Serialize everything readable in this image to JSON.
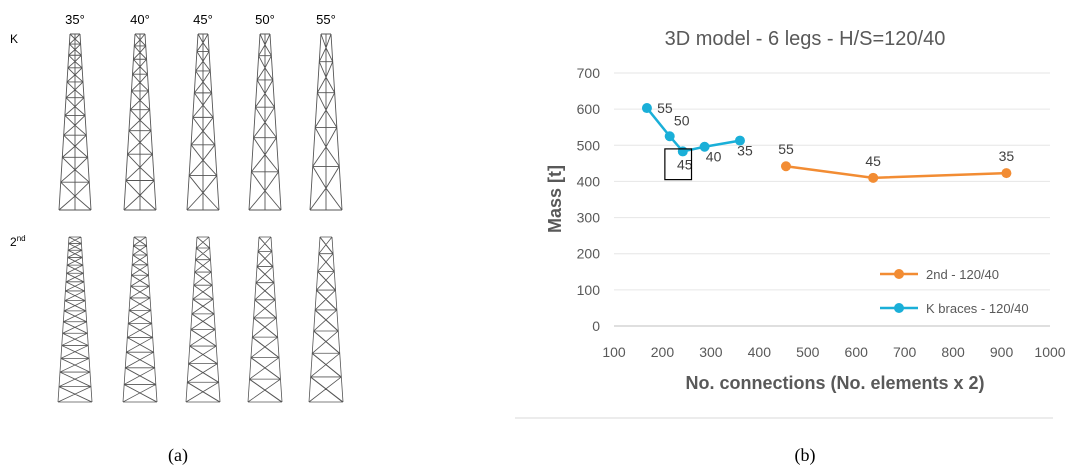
{
  "panel_a": {
    "angle_labels": [
      "35°",
      "40°",
      "45°",
      "50°",
      "55°"
    ],
    "row_k_label": "K",
    "row_2nd_label": "2",
    "row_2nd_superscript": "nd",
    "caption": "(a)",
    "tower_color": "#555555"
  },
  "panel_b": {
    "caption": "(b)"
  },
  "chart_data": {
    "type": "line",
    "title": "3D model - 6 legs - H/S=120/40",
    "xlabel": "No. connections (No. elements x 2)",
    "ylabel": "Mass [t]",
    "xlim": [
      100,
      1000
    ],
    "ylim": [
      0,
      700
    ],
    "xticks": [
      100,
      200,
      300,
      400,
      500,
      600,
      700,
      800,
      900,
      1000
    ],
    "yticks": [
      0,
      100,
      200,
      300,
      400,
      500,
      600,
      700
    ],
    "grid": true,
    "legend_position": "bottom-right",
    "series": [
      {
        "name": "2nd - 120/40",
        "color": "#F28C33",
        "x": [
          455,
          635,
          910
        ],
        "y": [
          442,
          410,
          423
        ],
        "labels": [
          "55",
          "45",
          "35"
        ]
      },
      {
        "name": "K braces - 120/40",
        "color": "#1AAFD8",
        "x": [
          168,
          215,
          242,
          287,
          360
        ],
        "y": [
          603,
          525,
          483,
          496,
          513
        ],
        "labels": [
          "55",
          "50",
          "45",
          "40",
          "35"
        ]
      }
    ],
    "highlight_box": {
      "x": [
        205,
        260
      ],
      "y": [
        405,
        490
      ],
      "label": "45"
    }
  }
}
